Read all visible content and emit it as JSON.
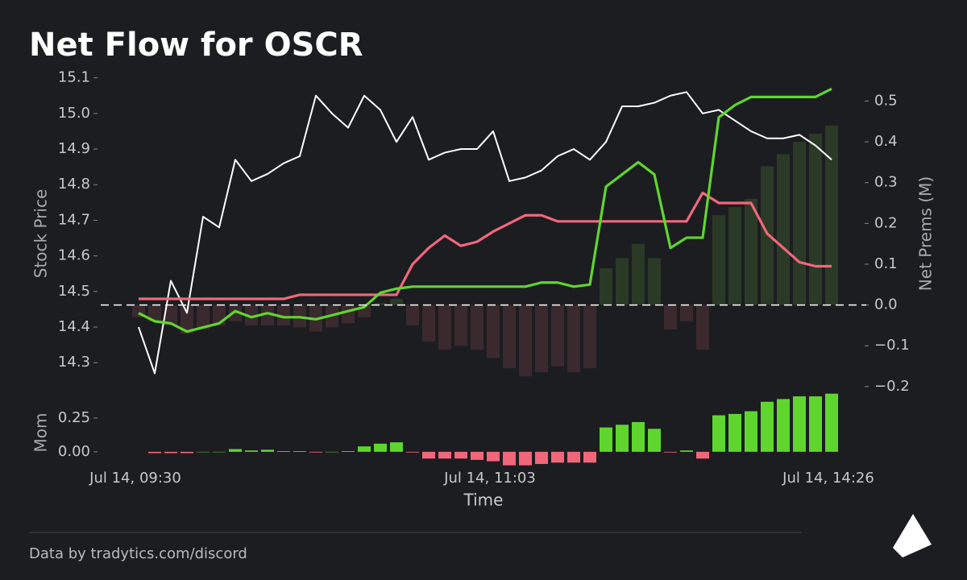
{
  "chart_data": [
    {
      "type": "line",
      "title": "Net Flow for OSCR",
      "ylabel": "Stock Price",
      "y2label": "Net Prems (M)",
      "ylim": [
        14.21,
        15.115
      ],
      "yticks": [
        14.3,
        14.4,
        14.5,
        14.6,
        14.7,
        14.8,
        14.9,
        {
          "value": 15.0,
          "label": "15.0"
        },
        15.1
      ],
      "y2lim": [
        -0.22,
        0.57
      ],
      "y2ticks": [
        {
          "value": -0.2,
          "label": "−0.2"
        },
        {
          "value": -0.1,
          "label": "−0.1"
        },
        {
          "value": 0.0,
          "label": "0.0"
        },
        0.1,
        0.2,
        0.3,
        0.4,
        0.5
      ],
      "series": [
        {
          "type": "bar",
          "axis": "y2",
          "pos_color": "#2b3a27",
          "neg_color": "#3a2a2d",
          "values": [
            -0.03,
            -0.04,
            -0.05,
            -0.07,
            -0.06,
            -0.05,
            -0.04,
            -0.05,
            -0.05,
            -0.05,
            -0.055,
            -0.065,
            -0.055,
            -0.045,
            -0.03,
            0.005,
            0.015,
            -0.05,
            -0.09,
            -0.11,
            -0.1,
            -0.11,
            -0.13,
            -0.155,
            -0.175,
            -0.165,
            -0.15,
            -0.165,
            -0.155,
            0.09,
            0.115,
            0.15,
            0.115,
            -0.06,
            -0.04,
            -0.11,
            0.22,
            0.24,
            0.26,
            0.34,
            0.37,
            0.4,
            0.42,
            0.44
          ]
        },
        {
          "type": "line",
          "axis": "y",
          "color": "#ffffff",
          "values": [
            14.4,
            14.27,
            14.53,
            14.44,
            14.71,
            14.68,
            14.87,
            14.81,
            14.83,
            14.86,
            14.88,
            15.05,
            15.0,
            14.96,
            15.05,
            15.01,
            14.92,
            14.99,
            14.87,
            14.89,
            14.9,
            14.9,
            14.95,
            14.81,
            14.82,
            14.84,
            14.88,
            14.9,
            14.87,
            14.92,
            15.02,
            15.02,
            15.03,
            15.05,
            15.06,
            15.0,
            15.01,
            14.98,
            14.95,
            14.93,
            14.93,
            14.94,
            14.91,
            14.87
          ]
        },
        {
          "type": "line",
          "axis": "y2",
          "color": "#f2667a",
          "values": [
            0.015,
            0.015,
            0.015,
            0.015,
            0.015,
            0.015,
            0.015,
            0.015,
            0.015,
            0.015,
            0.025,
            0.025,
            0.025,
            0.025,
            0.025,
            0.025,
            0.025,
            0.1,
            0.14,
            0.17,
            0.145,
            0.155,
            0.18,
            0.2,
            0.22,
            0.22,
            0.205,
            0.205,
            0.205,
            0.205,
            0.205,
            0.205,
            0.205,
            0.205,
            0.205,
            0.275,
            0.25,
            0.25,
            0.25,
            0.175,
            0.14,
            0.105,
            0.095,
            0.095
          ]
        },
        {
          "type": "line",
          "axis": "y2",
          "color": "#5fd62e",
          "values": [
            -0.02,
            -0.04,
            -0.045,
            -0.065,
            -0.055,
            -0.045,
            -0.015,
            -0.03,
            -0.02,
            -0.03,
            -0.03,
            -0.035,
            -0.025,
            -0.015,
            -0.005,
            0.03,
            0.04,
            0.045,
            0.045,
            0.045,
            0.045,
            0.045,
            0.045,
            0.045,
            0.045,
            0.055,
            0.055,
            0.045,
            0.05,
            0.29,
            0.32,
            0.35,
            0.32,
            0.14,
            0.165,
            0.165,
            0.46,
            0.49,
            0.51,
            0.51,
            0.51,
            0.51,
            0.51,
            0.53
          ]
        }
      ]
    },
    {
      "type": "bar",
      "ylabel": "Mom",
      "xlabel": "Time",
      "ylim": [
        -0.12,
        0.44
      ],
      "yticks": [
        {
          "value": 0,
          "label": "0.00"
        },
        {
          "value": 0.25,
          "label": "0.25"
        }
      ],
      "pos_color": "#5fd62e",
      "neg_color": "#f2667a",
      "categories": [
        "Jul 14, 09:30",
        null,
        null,
        null,
        null,
        null,
        null,
        null,
        null,
        null,
        null,
        null,
        null,
        null,
        null,
        null,
        null,
        null,
        null,
        null,
        null,
        null,
        "Jul 14, 11:03",
        null,
        null,
        null,
        null,
        null,
        null,
        null,
        null,
        null,
        null,
        null,
        null,
        null,
        null,
        null,
        null,
        null,
        null,
        null,
        null,
        "Jul 14, 14:26"
      ],
      "values": [
        null,
        -0.01,
        -0.01,
        -0.01,
        0,
        0,
        0.02,
        0.01,
        0.015,
        0.005,
        0.005,
        -0.005,
        0,
        0.005,
        0.04,
        0.06,
        0.07,
        -0.005,
        -0.05,
        -0.05,
        -0.05,
        -0.06,
        -0.07,
        -0.1,
        -0.1,
        -0.09,
        -0.08,
        -0.08,
        -0.08,
        0.18,
        0.2,
        0.22,
        0.17,
        -0.005,
        0.01,
        -0.05,
        0.27,
        0.28,
        0.3,
        0.37,
        0.39,
        0.41,
        0.41,
        0.43
      ]
    }
  ],
  "footer": "Data by tradytics.com/discord"
}
